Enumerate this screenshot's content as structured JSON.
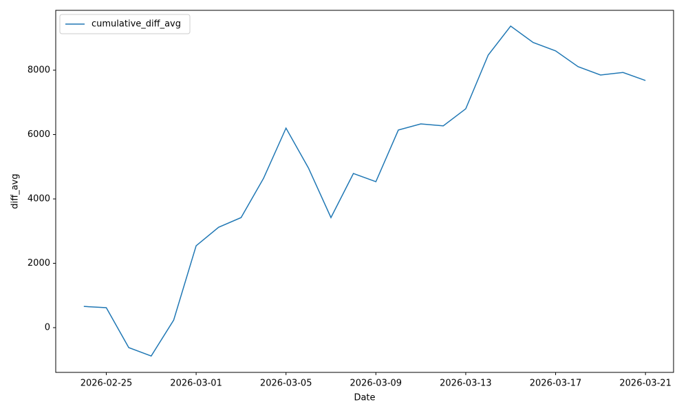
{
  "chart_data": {
    "type": "line",
    "xlabel": "Date",
    "ylabel": "diff_avg",
    "x": [
      "2026-02-24",
      "2026-02-25",
      "2026-02-26",
      "2026-02-27",
      "2026-02-28",
      "2026-03-01",
      "2026-03-02",
      "2026-03-03",
      "2026-03-04",
      "2026-03-05",
      "2026-03-06",
      "2026-03-07",
      "2026-03-08",
      "2026-03-09",
      "2026-03-10",
      "2026-03-11",
      "2026-03-12",
      "2026-03-13",
      "2026-03-14",
      "2026-03-15",
      "2026-03-16",
      "2026-03-17",
      "2026-03-18",
      "2026-03-19",
      "2026-03-20",
      "2026-03-21"
    ],
    "series": [
      {
        "name": "cumulative_diff_avg",
        "color": "#1f77b4",
        "values": [
          660,
          620,
          -620,
          -880,
          235,
          2545,
          3120,
          3420,
          4640,
          6200,
          4960,
          3420,
          4790,
          4535,
          6140,
          6330,
          6270,
          6800,
          8470,
          9370,
          8860,
          8600,
          8110,
          7850,
          7930,
          7680
        ]
      }
    ],
    "xticks": [
      "2026-02-25",
      "2026-03-01",
      "2026-03-05",
      "2026-03-09",
      "2026-03-13",
      "2026-03-17",
      "2026-03-21"
    ],
    "ylim": [
      -1390,
      9860
    ],
    "yticks": [
      0,
      2000,
      4000,
      6000,
      8000
    ],
    "legend": "upper-left",
    "grid": false
  }
}
